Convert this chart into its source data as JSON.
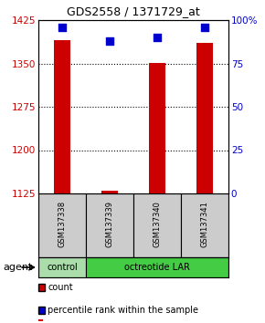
{
  "title": "GDS2558 / 1371729_at",
  "samples": [
    "GSM137338",
    "GSM137339",
    "GSM137340",
    "GSM137341"
  ],
  "count_values": [
    1390,
    1130,
    1350,
    1385
  ],
  "percentile_values": [
    96,
    88,
    90,
    96
  ],
  "ylim_left": [
    1125,
    1425
  ],
  "ylim_right": [
    0,
    100
  ],
  "yticks_left": [
    1125,
    1200,
    1275,
    1350,
    1425
  ],
  "yticks_right": [
    0,
    25,
    50,
    75,
    100
  ],
  "ytick_labels_right": [
    "0",
    "25",
    "50",
    "75",
    "100%"
  ],
  "grid_lines": [
    1200,
    1275,
    1350
  ],
  "bar_color": "#cc0000",
  "dot_color": "#0000cc",
  "group_control_color": "#aaddaa",
  "group_treat_color": "#44cc44",
  "agent_label": "agent",
  "legend_count_label": "count",
  "legend_pct_label": "percentile rank within the sample",
  "bar_width": 0.35,
  "dot_size": 40
}
